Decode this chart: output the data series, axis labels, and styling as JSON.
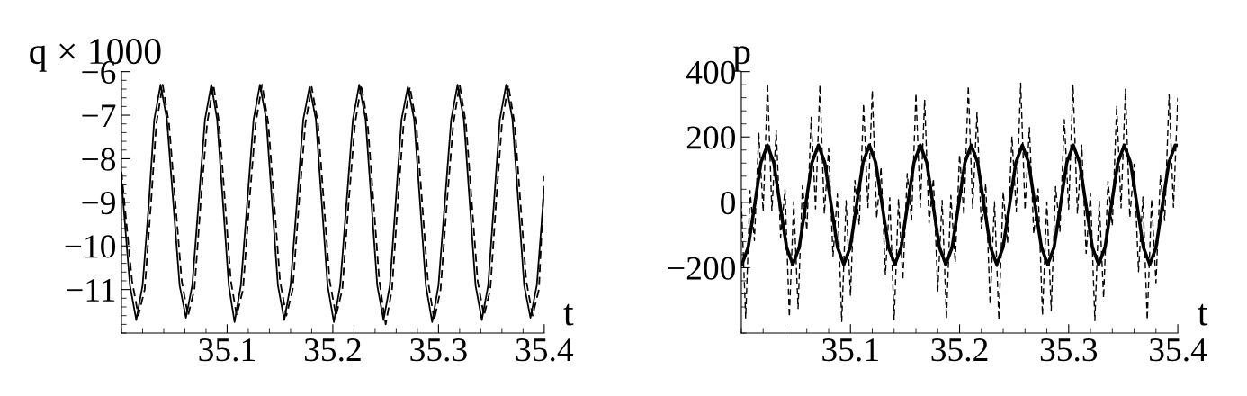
{
  "chart_data": [
    {
      "type": "line",
      "xlabel": "t",
      "ylabel": "q × 1000",
      "xlim": [
        35.0,
        35.4
      ],
      "ylim": [
        -12,
        -6
      ],
      "xticks": [
        35.1,
        35.2,
        35.3,
        35.4
      ],
      "yticks": [
        -6,
        -7,
        -8,
        -9,
        -10,
        -11
      ],
      "grid": false,
      "legend": false,
      "series": [
        {
          "color": "#000000",
          "line_style": "solid",
          "x": [
            35.0,
            35.008,
            35.014,
            35.02,
            35.026,
            35.031,
            35.037,
            35.043,
            35.049,
            35.055,
            35.061,
            35.067,
            35.073,
            35.079,
            35.085,
            35.0905,
            35.096,
            35.1015,
            35.107,
            35.113,
            35.119,
            35.125,
            35.131,
            35.137,
            35.1425,
            35.148,
            35.154,
            35.16,
            35.166,
            35.172,
            35.178,
            35.184,
            35.1895,
            35.195,
            35.201,
            35.207,
            35.213,
            35.219,
            35.225,
            35.231,
            35.2365,
            35.242,
            35.248,
            35.254,
            35.2595,
            35.265,
            35.271,
            35.277,
            35.2825,
            35.288,
            35.294,
            35.3,
            35.306,
            35.312,
            35.318,
            35.324,
            35.3295,
            35.335,
            35.341,
            35.347,
            35.3525,
            35.358,
            35.364,
            35.37,
            35.3755,
            35.381,
            35.387,
            35.393,
            35.4
          ],
          "values": [
            -8.5,
            -10.9,
            -11.7,
            -10.9,
            -9.0,
            -7.1,
            -6.3,
            -7.1,
            -9.0,
            -10.9,
            -11.65,
            -10.9,
            -9.0,
            -7.1,
            -6.3,
            -7.1,
            -9.0,
            -10.9,
            -11.75,
            -10.9,
            -9.0,
            -7.1,
            -6.3,
            -7.1,
            -9.0,
            -10.9,
            -11.7,
            -10.9,
            -9.0,
            -7.1,
            -6.35,
            -7.1,
            -9.0,
            -10.9,
            -11.75,
            -10.9,
            -9.0,
            -7.1,
            -6.3,
            -7.1,
            -9.0,
            -10.9,
            -11.7,
            -10.9,
            -9.0,
            -7.1,
            -6.35,
            -7.1,
            -9.0,
            -10.9,
            -11.75,
            -10.9,
            -9.0,
            -7.1,
            -6.3,
            -7.1,
            -9.0,
            -10.9,
            -11.7,
            -10.9,
            -9.0,
            -7.1,
            -6.3,
            -7.1,
            -9.0,
            -10.9,
            -11.65,
            -10.9,
            -8.7
          ]
        },
        {
          "color": "#000000",
          "line_style": "dashed",
          "x": [
            35.0,
            35.01,
            35.016,
            35.022,
            35.028,
            35.033,
            35.039,
            35.045,
            35.051,
            35.057,
            35.063,
            35.069,
            35.075,
            35.081,
            35.087,
            35.0925,
            35.098,
            35.1035,
            35.109,
            35.115,
            35.121,
            35.127,
            35.133,
            35.139,
            35.1445,
            35.15,
            35.156,
            35.162,
            35.168,
            35.174,
            35.18,
            35.186,
            35.1915,
            35.197,
            35.203,
            35.209,
            35.215,
            35.221,
            35.227,
            35.233,
            35.2385,
            35.244,
            35.25,
            35.256,
            35.2615,
            35.267,
            35.273,
            35.279,
            35.2845,
            35.29,
            35.296,
            35.302,
            35.308,
            35.314,
            35.32,
            35.326,
            35.3315,
            35.337,
            35.343,
            35.349,
            35.3545,
            35.36,
            35.366,
            35.372,
            35.3775,
            35.383,
            35.389,
            35.395,
            35.4
          ],
          "values": [
            -8.3,
            -10.8,
            -11.6,
            -11.0,
            -9.0,
            -7.2,
            -6.3,
            -7.2,
            -9.0,
            -10.8,
            -11.6,
            -11.0,
            -9.0,
            -7.2,
            -6.3,
            -7.2,
            -9.0,
            -10.8,
            -11.6,
            -11.0,
            -9.0,
            -7.2,
            -6.3,
            -7.2,
            -9.0,
            -10.8,
            -11.6,
            -11.0,
            -9.0,
            -7.2,
            -6.35,
            -7.2,
            -9.0,
            -10.8,
            -11.6,
            -11.0,
            -9.0,
            -7.2,
            -6.3,
            -7.2,
            -9.0,
            -10.8,
            -11.8,
            -11.0,
            -9.0,
            -7.2,
            -6.35,
            -7.2,
            -9.0,
            -10.8,
            -11.7,
            -11.0,
            -9.0,
            -7.2,
            -6.3,
            -7.2,
            -9.0,
            -10.8,
            -11.6,
            -11.0,
            -9.0,
            -7.2,
            -6.3,
            -7.2,
            -9.0,
            -10.8,
            -11.6,
            -11.0,
            -8.4
          ]
        }
      ]
    },
    {
      "type": "line",
      "xlabel": "t",
      "ylabel": "p",
      "xlim": [
        35.0,
        35.4
      ],
      "ylim": [
        -400,
        400
      ],
      "xticks": [
        35.1,
        35.2,
        35.3,
        35.4
      ],
      "yticks": [
        400,
        200,
        0,
        -200
      ],
      "grid": false,
      "legend": false,
      "series": [
        {
          "color": "#000000",
          "line_style": "dashed",
          "x": [
            35.0,
            35.004,
            35.008,
            35.012,
            35.016,
            35.02,
            35.024,
            35.028,
            35.032,
            35.036,
            35.04,
            35.044,
            35.048,
            35.052,
            35.056,
            35.06,
            35.064,
            35.068,
            35.072,
            35.076,
            35.08,
            35.084,
            35.088,
            35.092,
            35.096,
            35.1,
            35.104,
            35.108,
            35.112,
            35.116,
            35.12,
            35.124,
            35.128,
            35.132,
            35.136,
            35.14,
            35.144,
            35.148,
            35.152,
            35.156,
            35.16,
            35.164,
            35.168,
            35.172,
            35.176,
            35.18,
            35.184,
            35.188,
            35.192,
            35.196,
            35.2,
            35.204,
            35.208,
            35.212,
            35.216,
            35.22,
            35.224,
            35.228,
            35.232,
            35.236,
            35.24,
            35.244,
            35.248,
            35.252,
            35.256,
            35.26,
            35.264,
            35.268,
            35.272,
            35.276,
            35.28,
            35.284,
            35.288,
            35.292,
            35.296,
            35.3,
            35.304,
            35.308,
            35.312,
            35.316,
            35.32,
            35.324,
            35.328,
            35.332,
            35.336,
            35.34,
            35.344,
            35.348,
            35.352,
            35.356,
            35.36,
            35.364,
            35.368,
            35.372,
            35.376,
            35.38,
            35.384,
            35.388,
            35.392,
            35.396,
            35.4
          ],
          "values": [
            1,
            -354,
            36,
            -117,
            211,
            -28,
            365,
            -26,
            220,
            -107,
            39,
            -351,
            2,
            -325,
            51,
            -86,
            260,
            -20,
            360,
            -36,
            165,
            -165,
            25,
            -365,
            5,
            -286,
            67,
            -69,
            302,
            -16,
            343,
            -49,
            108,
            -221,
            14,
            -360,
            11,
            -238,
            88,
            -54,
            334,
            -15,
            314,
            -64,
            73,
            -271,
            6,
            -355,
            21,
            -184,
            146,
            -40,
            356,
            -18,
            275,
            -80,
            57,
            -313,
            2,
            -359,
            33,
            -126,
            202,
            -29,
            365,
            -24,
            229,
            -97,
            41,
            -346,
            1,
            -331,
            48,
            -89,
            253,
            -21,
            362,
            -35,
            175,
            -156,
            27,
            -362,
            4,
            -293,
            65,
            -72,
            296,
            -17,
            346,
            -47,
            117,
            -212,
            16,
            -360,
            10,
            -246,
            82,
            -56,
            330,
            -15,
            320
          ]
        },
        {
          "color": "#000000",
          "line_style": "solid",
          "x": [
            35.0005,
            35.0063,
            35.0122,
            35.018,
            35.0239,
            35.0297,
            35.0355,
            35.0414,
            35.0472,
            35.0531,
            35.0589,
            35.0647,
            35.0706,
            35.0764,
            35.0823,
            35.0881,
            35.0939,
            35.0998,
            35.1056,
            35.1115,
            35.1173,
            35.1231,
            35.129,
            35.1348,
            35.1407,
            35.1465,
            35.1523,
            35.1582,
            35.164,
            35.1699,
            35.1757,
            35.1815,
            35.1874,
            35.1932,
            35.1991,
            35.2049,
            35.2107,
            35.2166,
            35.2224,
            35.2283,
            35.2341,
            35.2399,
            35.2458,
            35.2516,
            35.2575,
            35.2633,
            35.2691,
            35.275,
            35.2808,
            35.2867,
            35.2925,
            35.2983,
            35.3042,
            35.31,
            35.3159,
            35.3217,
            35.3275,
            35.3334,
            35.3392,
            35.3451,
            35.3509,
            35.3567,
            35.3626,
            35.3684,
            35.3743,
            35.3801,
            35.3859,
            35.3918,
            35.3976,
            35.4
          ],
          "values": [
            -190,
            -137,
            -8,
            122,
            175,
            122,
            -8,
            -137,
            -190,
            -137,
            -8,
            122,
            175,
            122,
            -8,
            -137,
            -190,
            -137,
            -8,
            122,
            175,
            122,
            -8,
            -137,
            -190,
            -137,
            -8,
            122,
            175,
            122,
            -8,
            -137,
            -190,
            -137,
            -8,
            122,
            175,
            122,
            -8,
            -137,
            -190,
            -137,
            -8,
            122,
            175,
            122,
            -8,
            -137,
            -190,
            -137,
            -8,
            122,
            175,
            122,
            -8,
            -137,
            -190,
            -137,
            -8,
            122,
            175,
            122,
            -8,
            -137,
            -190,
            -137,
            -8,
            122,
            175,
            174
          ]
        }
      ]
    }
  ]
}
